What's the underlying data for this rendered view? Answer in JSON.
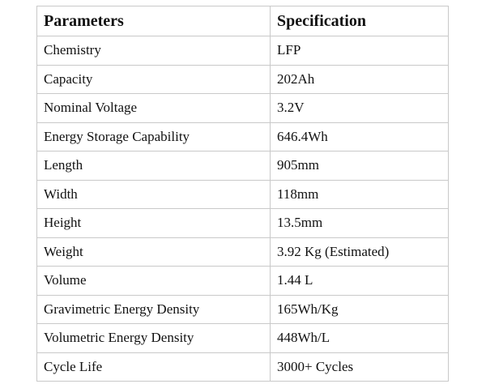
{
  "table": {
    "header": [
      "Parameters",
      "Specification"
    ],
    "rows": [
      [
        "Chemistry",
        "LFP"
      ],
      [
        "Capacity",
        "202Ah"
      ],
      [
        "Nominal Voltage",
        "3.2V"
      ],
      [
        "Energy Storage Capability",
        "646.4Wh"
      ],
      [
        "Length",
        "905mm"
      ],
      [
        "Width",
        "118mm"
      ],
      [
        "Height",
        "13.5mm"
      ],
      [
        "Weight",
        "3.92 Kg (Estimated)"
      ],
      [
        "Volume",
        "1.44 L"
      ],
      [
        "Gravimetric Energy Density",
        "165Wh/Kg"
      ],
      [
        "Volumetric Energy Density",
        "448Wh/L"
      ],
      [
        "Cycle Life",
        "3000+ Cycles"
      ]
    ]
  }
}
